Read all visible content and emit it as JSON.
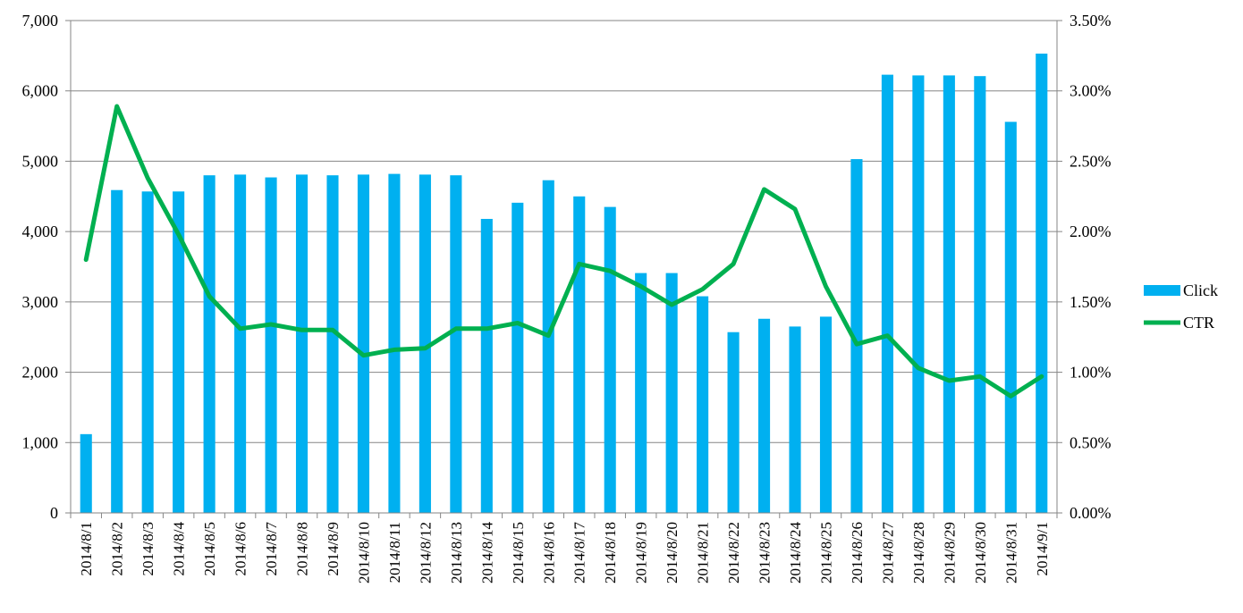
{
  "chart_data": {
    "type": "bar",
    "title": "",
    "xlabel": "",
    "ylabel": "",
    "ylim": [
      0,
      7000
    ],
    "y2lim": [
      0,
      0.035
    ],
    "grid": true,
    "legend_position": "right",
    "categories": [
      "2014/8/1",
      "2014/8/2",
      "2014/8/3",
      "2014/8/4",
      "2014/8/5",
      "2014/8/6",
      "2014/8/7",
      "2014/8/8",
      "2014/8/9",
      "2014/8/10",
      "2014/8/11",
      "2014/8/12",
      "2014/8/13",
      "2014/8/14",
      "2014/8/15",
      "2014/8/16",
      "2014/8/17",
      "2014/8/18",
      "2014/8/19",
      "2014/8/20",
      "2014/8/21",
      "2014/8/22",
      "2014/8/23",
      "2014/8/24",
      "2014/8/25",
      "2014/8/26",
      "2014/8/27",
      "2014/8/28",
      "2014/8/29",
      "2014/8/30",
      "2014/8/31",
      "2014/9/1"
    ],
    "y_ticks": [
      "0",
      "1,000",
      "2,000",
      "3,000",
      "4,000",
      "5,000",
      "6,000",
      "7,000"
    ],
    "y2_ticks": [
      "0.00%",
      "0.50%",
      "1.00%",
      "1.50%",
      "2.00%",
      "2.50%",
      "3.00%",
      "3.50%"
    ],
    "series": [
      {
        "name": "Click",
        "type": "bar",
        "axis": "left",
        "color": "#00B0F0",
        "values": [
          1120,
          4590,
          4570,
          4570,
          4800,
          4810,
          4770,
          4810,
          4800,
          4810,
          4820,
          4810,
          4800,
          4180,
          4410,
          4730,
          4500,
          4350,
          3410,
          3410,
          3080,
          2570,
          2760,
          2650,
          2790,
          5030,
          6230,
          6220,
          6220,
          6210,
          5560,
          6530
        ]
      },
      {
        "name": "CTR",
        "type": "line",
        "axis": "right",
        "color": "#00B050",
        "values": [
          0.018,
          0.0289,
          0.0238,
          0.0198,
          0.0154,
          0.0131,
          0.0134,
          0.013,
          0.013,
          0.0112,
          0.0116,
          0.0117,
          0.0131,
          0.0131,
          0.0135,
          0.0126,
          0.0177,
          0.0172,
          0.0161,
          0.0148,
          0.0159,
          0.0177,
          0.023,
          0.0216,
          0.0161,
          0.012,
          0.0126,
          0.0103,
          0.0094,
          0.0097,
          0.0083,
          0.0097
        ]
      }
    ]
  }
}
